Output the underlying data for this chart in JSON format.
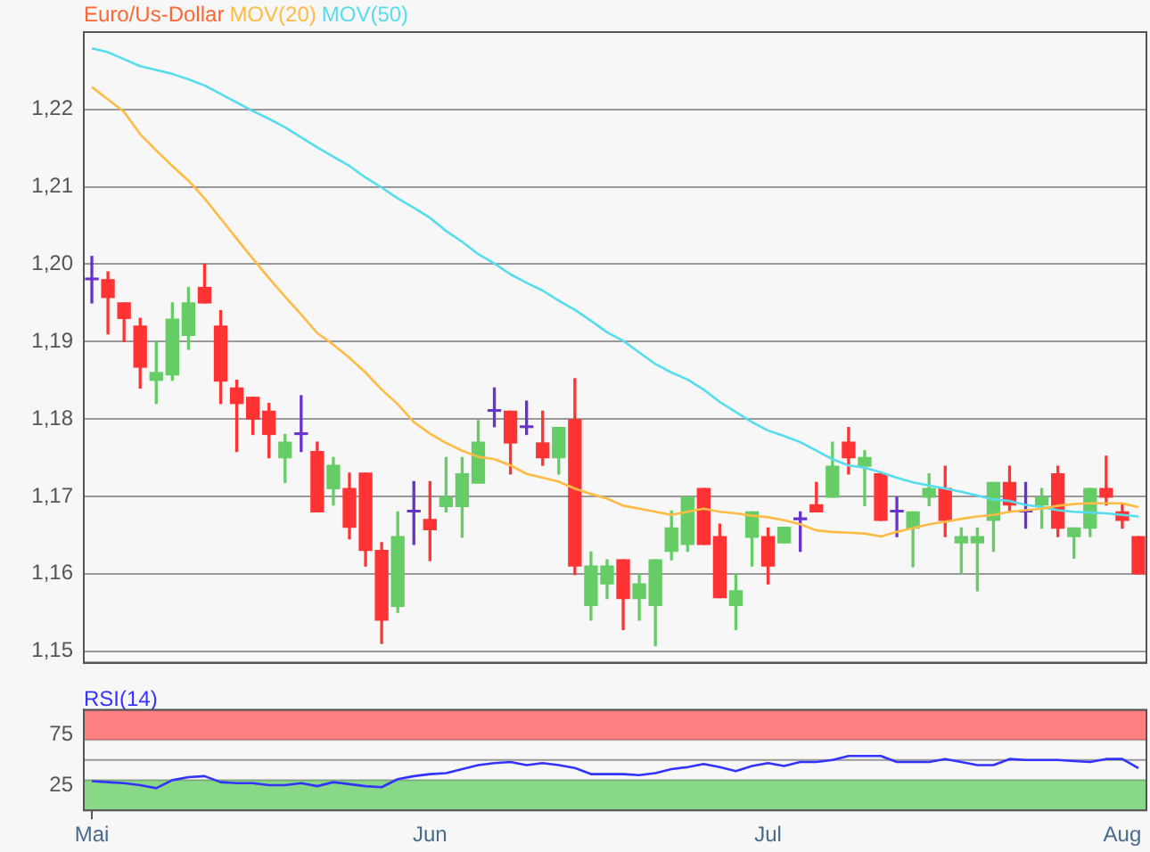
{
  "chart_data": [
    {
      "type": "candlestick",
      "title": "Euro/Us-Dollar",
      "categories": [
        null,
        null,
        null,
        null,
        null,
        null,
        null,
        null,
        null,
        null,
        null,
        null,
        null,
        null,
        null,
        null,
        null,
        null,
        null,
        null,
        null,
        null,
        null,
        null,
        null,
        null,
        null,
        null,
        null,
        null,
        null,
        null,
        null,
        null,
        null,
        null,
        null,
        null,
        null,
        null,
        null,
        null,
        null,
        null,
        null,
        null,
        null,
        null,
        null,
        null,
        null,
        null,
        null,
        null,
        null,
        null,
        null,
        null,
        null,
        null,
        null,
        null,
        null,
        null,
        null,
        null
      ],
      "ohlc": [
        [
          1.198,
          1.201,
          1.195,
          1.1982
        ],
        [
          1.198,
          1.199,
          1.191,
          1.1957
        ],
        [
          1.195,
          1.195,
          1.19,
          1.193
        ],
        [
          1.192,
          1.193,
          1.184,
          1.1867
        ],
        [
          1.185,
          1.19,
          1.182,
          1.186
        ],
        [
          1.1857,
          1.195,
          1.185,
          1.1929
        ],
        [
          1.1908,
          1.197,
          1.189,
          1.195
        ],
        [
          1.197,
          1.2,
          1.195,
          1.195
        ],
        [
          1.192,
          1.194,
          1.182,
          1.1849
        ],
        [
          1.184,
          1.185,
          1.1758,
          1.182
        ],
        [
          1.1828,
          1.1828,
          1.178,
          1.18
        ],
        [
          1.181,
          1.182,
          1.175,
          1.178
        ],
        [
          1.175,
          1.178,
          1.1718,
          1.177
        ],
        [
          1.178,
          1.183,
          1.1758,
          1.1782
        ],
        [
          1.1758,
          1.177,
          1.168,
          1.168
        ],
        [
          1.171,
          1.175,
          1.1689,
          1.174
        ],
        [
          1.171,
          1.173,
          1.1645,
          1.166
        ],
        [
          1.173,
          1.173,
          1.161,
          1.163
        ],
        [
          1.163,
          1.164,
          1.151,
          1.154
        ],
        [
          1.1558,
          1.168,
          1.155,
          1.1648
        ],
        [
          1.168,
          1.1719,
          1.1638,
          1.1682
        ],
        [
          1.167,
          1.1719,
          1.1617,
          1.1657
        ],
        [
          1.1687,
          1.175,
          1.168,
          1.1699
        ],
        [
          1.1687,
          1.175,
          1.1647,
          1.1729
        ],
        [
          1.1717,
          1.1798,
          1.1717,
          1.177
        ],
        [
          1.181,
          1.184,
          1.179,
          1.1812
        ],
        [
          1.181,
          1.181,
          1.1729,
          1.1769
        ],
        [
          1.1789,
          1.1823,
          1.178,
          1.1791
        ],
        [
          1.1769,
          1.181,
          1.174,
          1.175
        ],
        [
          1.175,
          1.1789,
          1.1729,
          1.1789
        ],
        [
          1.1799,
          1.1852,
          1.1599,
          1.161
        ],
        [
          1.1559,
          1.1628,
          1.154,
          1.161
        ],
        [
          1.1587,
          1.1618,
          1.1568,
          1.161
        ],
        [
          1.1618,
          1.1618,
          1.1528,
          1.1568
        ],
        [
          1.1568,
          1.1599,
          1.154,
          1.1587
        ],
        [
          1.1559,
          1.1618,
          1.1507,
          1.1618
        ],
        [
          1.1629,
          1.1681,
          1.1618,
          1.1659
        ],
        [
          1.1638,
          1.1699,
          1.1629,
          1.1699
        ],
        [
          1.171,
          1.171,
          1.1638,
          1.1638
        ],
        [
          1.1648,
          1.1664,
          1.1569,
          1.1569
        ],
        [
          1.1559,
          1.1599,
          1.1528,
          1.1578
        ],
        [
          1.1647,
          1.168,
          1.161,
          1.168
        ],
        [
          1.1648,
          1.1659,
          1.1587,
          1.161
        ],
        [
          1.164,
          1.166,
          1.164,
          1.166
        ],
        [
          1.167,
          1.168,
          1.1629,
          1.1672
        ],
        [
          1.1689,
          1.1718,
          1.168,
          1.168
        ],
        [
          1.1699,
          1.177,
          1.1699,
          1.1739
        ],
        [
          1.177,
          1.1789,
          1.1729,
          1.175
        ],
        [
          1.1739,
          1.1759,
          1.1688,
          1.175
        ],
        [
          1.1729,
          1.1729,
          1.1669,
          1.1669
        ],
        [
          1.168,
          1.1699,
          1.1648,
          1.1682
        ],
        [
          1.1659,
          1.168,
          1.1609,
          1.168
        ],
        [
          1.1699,
          1.1729,
          1.1688,
          1.171
        ],
        [
          1.171,
          1.1739,
          1.1648,
          1.1669
        ],
        [
          1.164,
          1.1659,
          1.16,
          1.1648
        ],
        [
          1.164,
          1.1659,
          1.1578,
          1.1648
        ],
        [
          1.1669,
          1.1718,
          1.1629,
          1.1718
        ],
        [
          1.1718,
          1.1739,
          1.168,
          1.1689
        ],
        [
          1.168,
          1.1718,
          1.1659,
          1.1682
        ],
        [
          1.1689,
          1.171,
          1.1659,
          1.1699
        ],
        [
          1.1729,
          1.1739,
          1.1648,
          1.1659
        ],
        [
          1.1648,
          1.1659,
          1.162,
          1.1659
        ],
        [
          1.1659,
          1.171,
          1.1648,
          1.171
        ],
        [
          1.171,
          1.1752,
          1.1689,
          1.1699
        ],
        [
          1.168,
          1.1689,
          1.1659,
          1.1669
        ],
        [
          1.1648,
          1.1648,
          1.16,
          1.16
        ]
      ],
      "colors": [
        "#6633cc",
        "#ff3333",
        "#ff3333",
        "#ff3333",
        "#66cc66",
        "#66cc66",
        "#66cc66",
        "#ff3333",
        "#ff3333",
        "#ff3333",
        "#ff3333",
        "#ff3333",
        "#66cc66",
        "#6633cc",
        "#ff3333",
        "#66cc66",
        "#ff3333",
        "#ff3333",
        "#ff3333",
        "#66cc66",
        "#6633cc",
        "#ff3333",
        "#66cc66",
        "#66cc66",
        "#66cc66",
        "#6633cc",
        "#ff3333",
        "#6633cc",
        "#ff3333",
        "#66cc66",
        "#ff3333",
        "#66cc66",
        "#66cc66",
        "#ff3333",
        "#66cc66",
        "#66cc66",
        "#66cc66",
        "#66cc66",
        "#ff3333",
        "#ff3333",
        "#66cc66",
        "#66cc66",
        "#ff3333",
        "#66cc66",
        "#6633cc",
        "#ff3333",
        "#66cc66",
        "#ff3333",
        "#66cc66",
        "#ff3333",
        "#6633cc",
        "#66cc66",
        "#66cc66",
        "#ff3333",
        "#66cc66",
        "#66cc66",
        "#66cc66",
        "#ff3333",
        "#6633cc",
        "#66cc66",
        "#ff3333",
        "#66cc66",
        "#66cc66",
        "#ff3333",
        "#ff3333",
        "#ff3333"
      ],
      "series": [
        {
          "type": "line",
          "name": "MOV(20)",
          "color": "#ffbb44",
          "values": [
            1.2229,
            1.2213,
            1.2197,
            1.2168,
            1.2147,
            1.2127,
            1.2108,
            1.2085,
            1.2059,
            1.2033,
            1.2007,
            1.1982,
            1.1958,
            1.1935,
            1.1911,
            1.1896,
            1.1879,
            1.186,
            1.1838,
            1.1819,
            1.1796,
            1.1781,
            1.1769,
            1.1759,
            1.1751,
            1.1748,
            1.174,
            1.1729,
            1.1724,
            1.1719,
            1.171,
            1.1703,
            1.1697,
            1.1688,
            1.1684,
            1.168,
            1.1676,
            1.168,
            1.1684,
            1.168,
            1.1678,
            1.1675,
            1.1673,
            1.1669,
            1.1664,
            1.1656,
            1.1654,
            1.1653,
            1.1652,
            1.1648,
            1.1654,
            1.1659,
            1.1664,
            1.1667,
            1.1671,
            1.1674,
            1.1676,
            1.168,
            1.1682,
            1.1684,
            1.1688,
            1.169,
            1.1691,
            1.1691,
            1.1691,
            1.1686
          ]
        },
        {
          "type": "line",
          "name": "MOV(50)",
          "color": "#55ddee",
          "values": [
            1.2279,
            1.2274,
            1.2265,
            1.2256,
            1.2251,
            1.2246,
            1.2239,
            1.2231,
            1.222,
            1.2209,
            1.2198,
            1.2188,
            1.2177,
            1.2164,
            1.2151,
            1.2139,
            1.2127,
            1.2112,
            1.2099,
            1.2085,
            1.2073,
            1.206,
            1.2043,
            1.2029,
            1.2013,
            1.2001,
            1.1987,
            1.1976,
            1.1966,
            1.1953,
            1.1941,
            1.1927,
            1.1912,
            1.1901,
            1.1886,
            1.1871,
            1.186,
            1.1851,
            1.1838,
            1.1822,
            1.1809,
            1.1796,
            1.1785,
            1.1778,
            1.177,
            1.1759,
            1.1748,
            1.174,
            1.1737,
            1.1731,
            1.1724,
            1.1718,
            1.1714,
            1.171,
            1.1706,
            1.1701,
            1.1696,
            1.1694,
            1.1689,
            1.1686,
            1.1682,
            1.168,
            1.1679,
            1.1678,
            1.1676,
            1.1674
          ]
        }
      ],
      "ylim": [
        1.1485,
        1.23
      ],
      "yticks": [
        {
          "value": 1.15,
          "label": "1,15"
        },
        {
          "value": 1.16,
          "label": "1,16"
        },
        {
          "value": 1.17,
          "label": "1,17"
        },
        {
          "value": 1.18,
          "label": "1,18"
        },
        {
          "value": 1.19,
          "label": "1,19"
        },
        {
          "value": 1.2,
          "label": "1,20"
        },
        {
          "value": 1.21,
          "label": "1,21"
        },
        {
          "value": 1.22,
          "label": "1,22"
        }
      ],
      "grid": "y",
      "legend": "top left",
      "marker": "none"
    },
    {
      "type": "line",
      "title": "RSI(14)",
      "categories": [
        "Mai",
        null,
        null,
        null,
        null,
        null,
        null,
        null,
        null,
        null,
        null,
        null,
        null,
        null,
        null,
        null,
        null,
        null,
        null,
        null,
        null,
        "Jun",
        null,
        null,
        null,
        null,
        null,
        null,
        null,
        null,
        null,
        null,
        null,
        null,
        null,
        null,
        null,
        null,
        null,
        null,
        null,
        null,
        "Jul",
        null,
        null,
        null,
        null,
        null,
        null,
        null,
        null,
        null,
        null,
        null,
        null,
        null,
        null,
        null,
        null,
        null,
        null,
        null,
        null,
        null,
        "Aug",
        null
      ],
      "series": [
        {
          "color": "#3333ff",
          "values": [
            29,
            28,
            27,
            25,
            22,
            30,
            33,
            34,
            28,
            27,
            27,
            25,
            25,
            27,
            24,
            28,
            26,
            24,
            23,
            31,
            34,
            36,
            37,
            41,
            45,
            47,
            48,
            45,
            47,
            45,
            42,
            36,
            36,
            36,
            35,
            37,
            41,
            43,
            46,
            43,
            39,
            44,
            47,
            44,
            48,
            48,
            50,
            54,
            54,
            54,
            48,
            48,
            48,
            51,
            48,
            45,
            45,
            51,
            50,
            50,
            50,
            49,
            48,
            51,
            51,
            42
          ]
        }
      ],
      "ylim": [
        0,
        100
      ],
      "yticks": [
        25,
        75
      ],
      "bands": [
        {
          "axis": "y",
          "from": 70,
          "to": 100,
          "color": "#ff8080"
        },
        {
          "axis": "y",
          "from": 0,
          "to": 30,
          "color": "#88d888"
        }
      ],
      "ref_lines": [
        {
          "axis": "y",
          "value": 50,
          "color": "#999999"
        }
      ],
      "grid": false,
      "marker": "none"
    }
  ]
}
